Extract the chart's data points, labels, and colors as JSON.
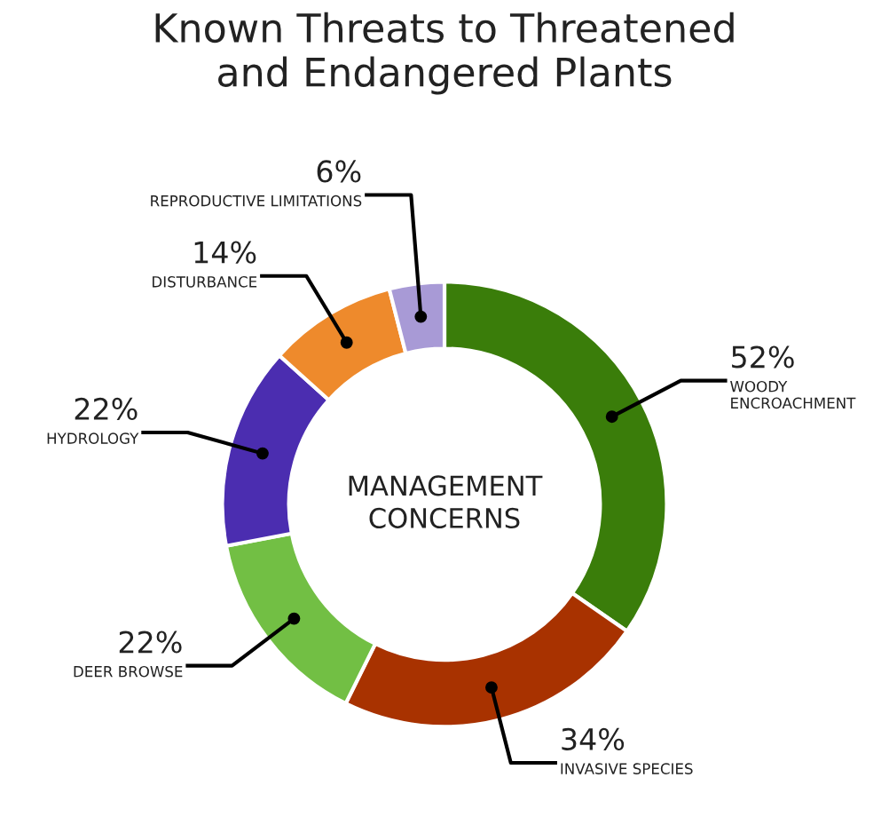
{
  "chart_data": {
    "type": "donut",
    "title": "Known Threats to Threatened\nand Endangered Plants",
    "categories": [
      "WOODY\nENCROACHMENT",
      "INVASIVE SPECIES",
      "DEER BROWSE",
      "HYDROLOGY",
      "DISTURBANCE",
      "REPRODUCTIVE LIMITATIONS"
    ],
    "values": [
      52,
      34,
      22,
      22,
      14,
      6
    ],
    "value_labels": [
      "52%",
      "34%",
      "22%",
      "22%",
      "14%",
      "6%"
    ],
    "colors": [
      "#3a7d0a",
      "#a83200",
      "#72bf44",
      "#4b2db0",
      "#ee8a2c",
      "#a89ad6"
    ],
    "annotations": [
      "MANAGEMENT\nCONCERNS"
    ]
  }
}
